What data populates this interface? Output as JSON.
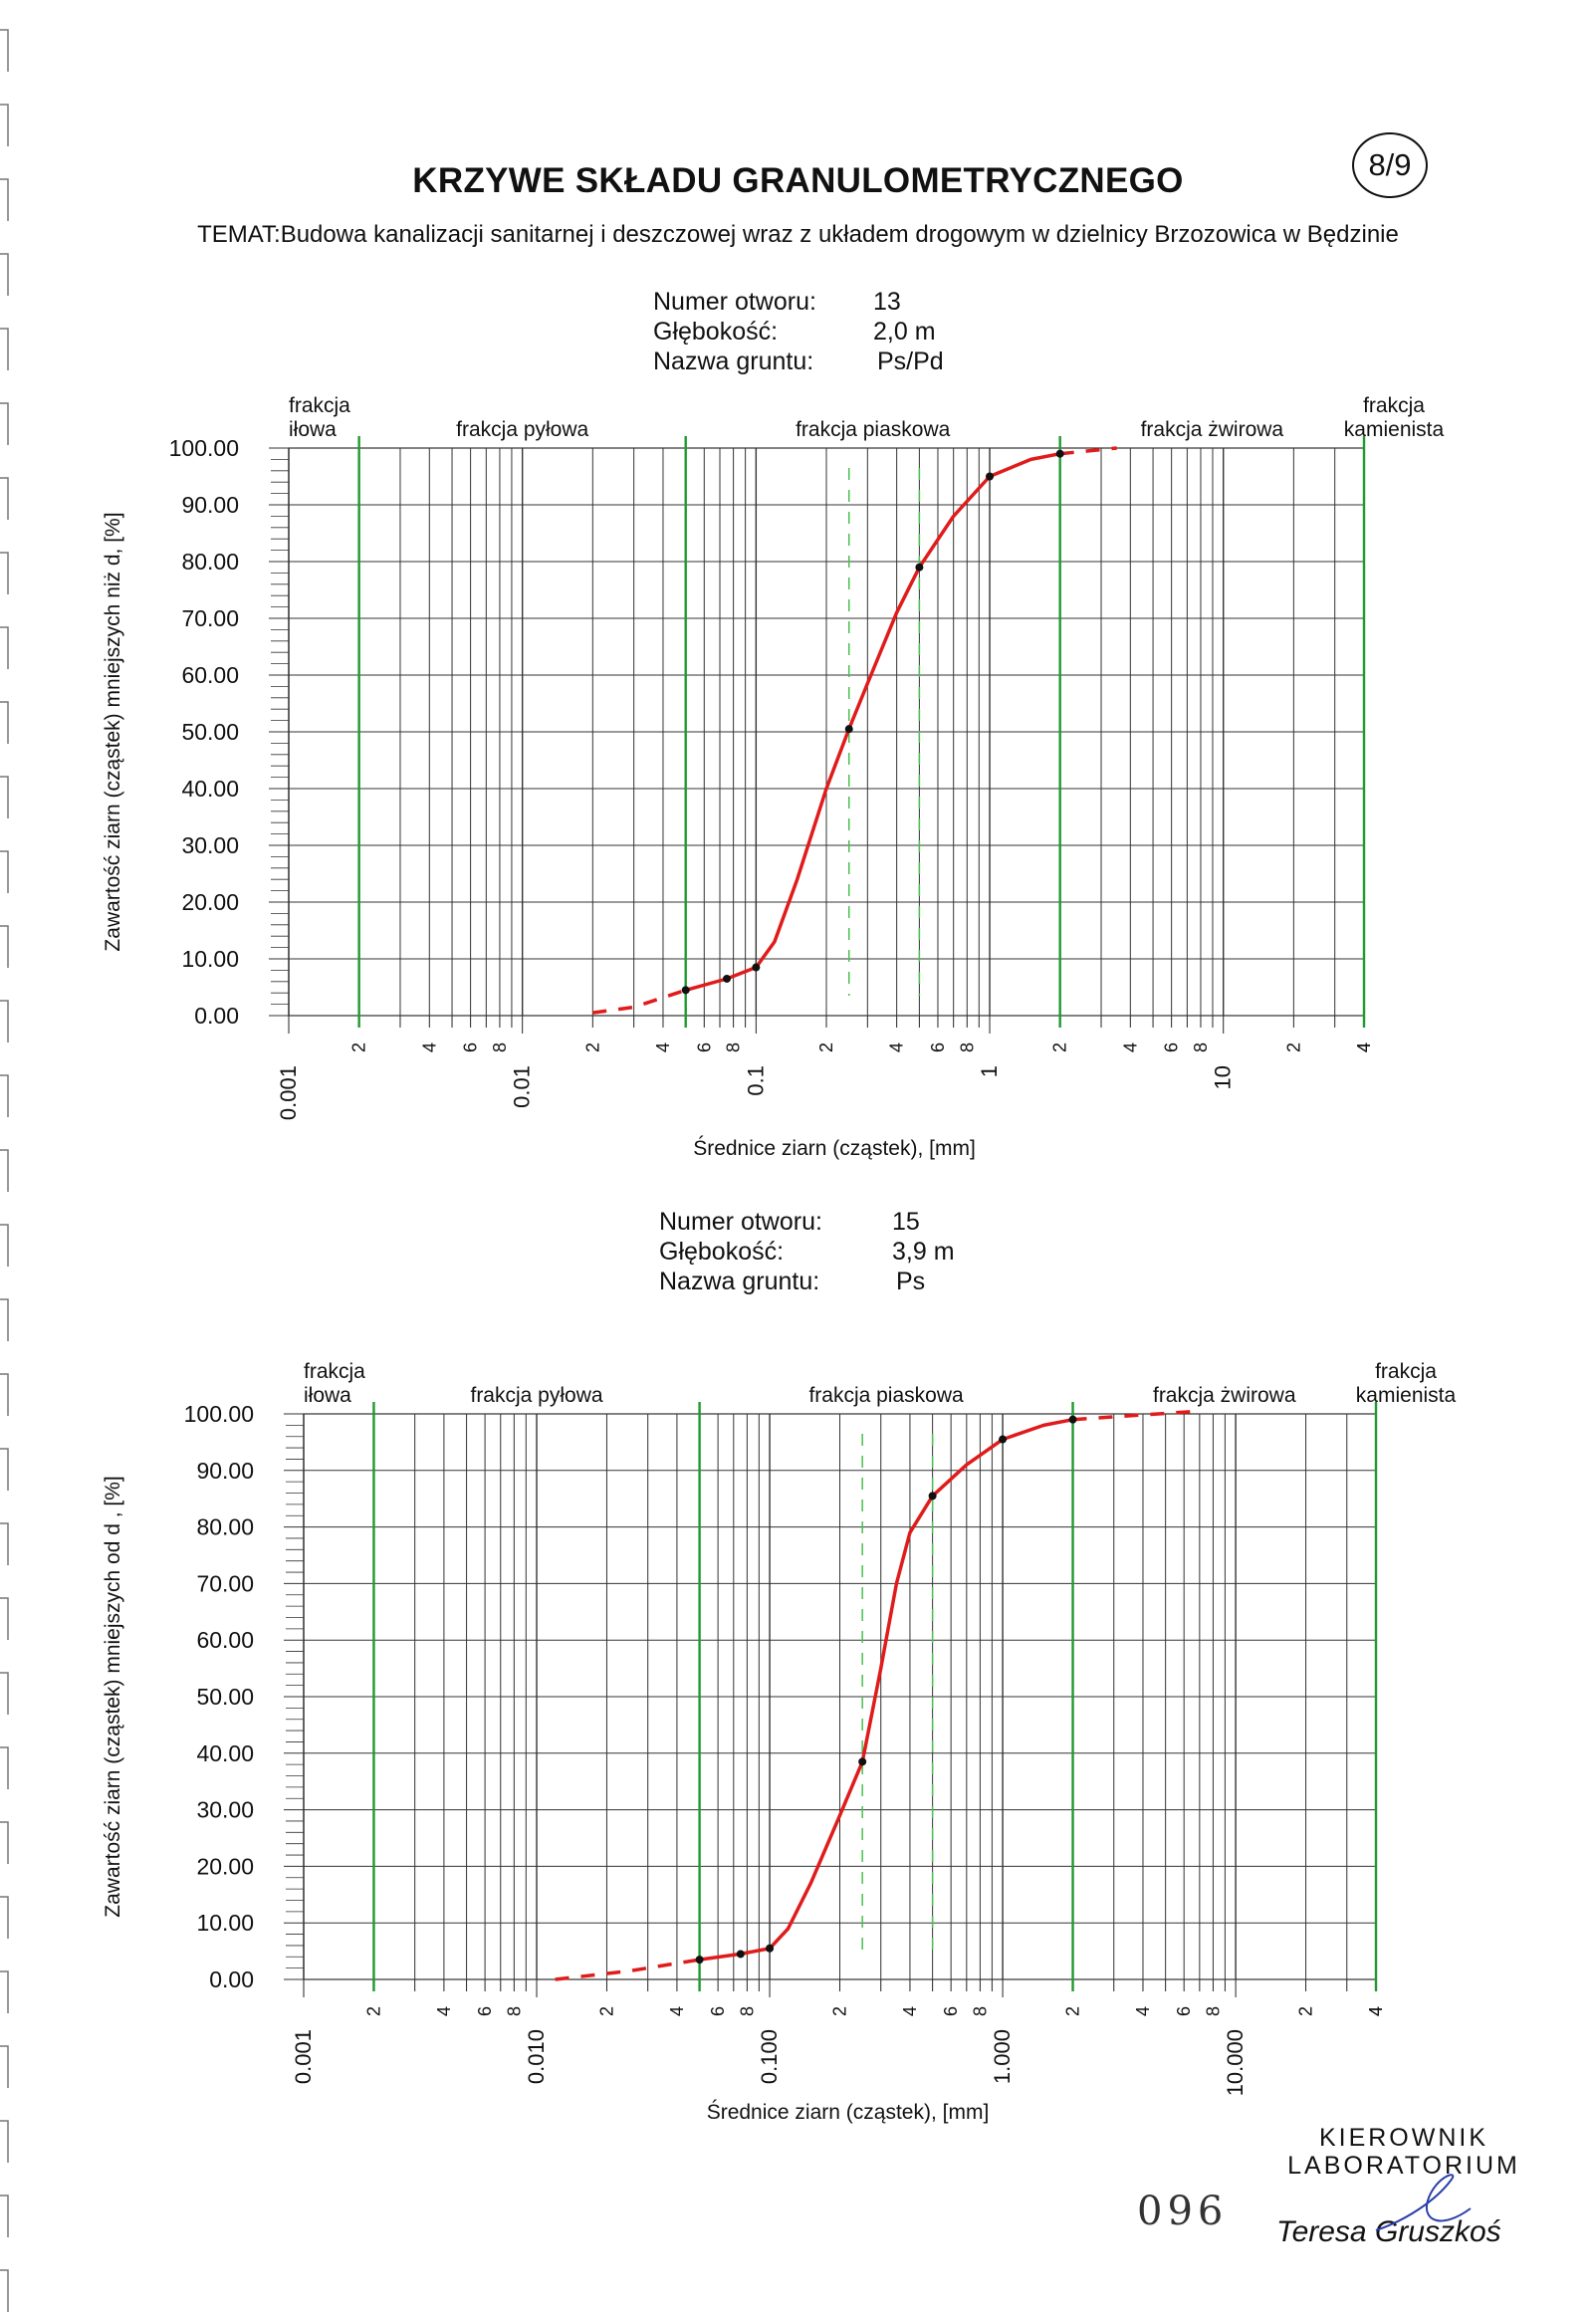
{
  "page": {
    "title": "KRZYWE SKŁADU GRANULOMETRYCZNEGO",
    "page_badge": "8/9",
    "topic": "TEMAT:Budowa kanalizacji sanitarnej i deszczowej wraz z układem drogowym w dzielnicy Brzozowica w Będzinie",
    "stamp_line1": "KIEROWNIK",
    "stamp_line2": "LABORATORIUM",
    "signatory": "Teresa Gruszkoś",
    "reference_number": "096"
  },
  "samples": [
    {
      "borehole_label": "Numer otworu:",
      "borehole": "13",
      "depth_label": "Głębokość:",
      "depth": "2,0 m",
      "soil_label": "Nazwa gruntu:",
      "soil": "Ps/Pd"
    },
    {
      "borehole_label": "Numer otworu:",
      "borehole": "15",
      "depth_label": "Głębokość:",
      "depth": "3,9 m",
      "soil_label": "Nazwa gruntu:",
      "soil": "Ps"
    }
  ],
  "chart_data": [
    {
      "type": "line",
      "x_scale": "log",
      "xlabel": "Średnice ziarn (cząstek), [mm]",
      "ylabel": "Zawartość ziarn (cząstek) mniejszych niż d, [%]",
      "xlim": [
        0.001,
        40
      ],
      "ylim": [
        0,
        100
      ],
      "y_ticks": [
        "0.00",
        "10.00",
        "20.00",
        "30.00",
        "40.00",
        "50.00",
        "60.00",
        "70.00",
        "80.00",
        "90.00",
        "100.00"
      ],
      "x_major_ticks": [
        "0.001",
        "0.01",
        "0.1",
        "1",
        "10"
      ],
      "x_minor_tick_digits": [
        "2",
        "4",
        "6",
        "8"
      ],
      "fractions": [
        {
          "label_line1": "frakcja",
          "label_line2": "iłowa",
          "from": 0.001,
          "to": 0.002
        },
        {
          "label_line1": "frakcja pyłowa",
          "label_line2": "",
          "from": 0.002,
          "to": 0.05
        },
        {
          "label_line1": "frakcja piaskowa",
          "label_line2": "",
          "from": 0.05,
          "to": 2
        },
        {
          "label_line1": "frakcja żwirowa",
          "label_line2": "",
          "from": 2,
          "to": 40
        },
        {
          "label_line1": "frakcja",
          "label_line2": "kamienista",
          "from": 40,
          "to": 40
        }
      ],
      "fraction_boundaries": [
        0.002,
        0.05,
        2,
        40
      ],
      "dashed_guides": [
        0.25,
        0.5
      ],
      "series": [
        {
          "color": "#e01b1b",
          "measured_points": [
            [
              0.05,
              4.5
            ],
            [
              0.075,
              6.5
            ],
            [
              0.1,
              8.5
            ],
            [
              0.25,
              50.5
            ],
            [
              0.5,
              79
            ],
            [
              1,
              95
            ],
            [
              2,
              99
            ]
          ],
          "curve": [
            [
              0.05,
              4.5
            ],
            [
              0.075,
              6.5
            ],
            [
              0.1,
              8.5
            ],
            [
              0.12,
              13
            ],
            [
              0.15,
              24
            ],
            [
              0.2,
              40
            ],
            [
              0.25,
              50.5
            ],
            [
              0.3,
              58.5
            ],
            [
              0.4,
              71
            ],
            [
              0.5,
              79
            ],
            [
              0.7,
              88
            ],
            [
              1,
              95
            ],
            [
              1.5,
              98
            ],
            [
              2,
              99
            ]
          ],
          "extrapolated_low": [
            [
              0.02,
              0.5
            ],
            [
              0.03,
              1.5
            ],
            [
              0.05,
              4.5
            ]
          ],
          "extrapolated_high": [
            [
              2,
              99
            ],
            [
              3.5,
              100
            ]
          ]
        }
      ]
    },
    {
      "type": "line",
      "x_scale": "log",
      "xlabel": "Średnice ziarn (cząstek), [mm]",
      "ylabel": "Zawartość ziarn (cząstek) mniejszych od d , [%]",
      "xlim": [
        0.001,
        40
      ],
      "ylim": [
        0,
        100
      ],
      "y_ticks": [
        "0.00",
        "10.00",
        "20.00",
        "30.00",
        "40.00",
        "50.00",
        "60.00",
        "70.00",
        "80.00",
        "90.00",
        "100.00"
      ],
      "x_major_ticks": [
        "0.001",
        "0.010",
        "0.100",
        "1.000",
        "10.000"
      ],
      "x_minor_tick_digits": [
        "2",
        "4",
        "6",
        "8"
      ],
      "fractions": [
        {
          "label_line1": "frakcja",
          "label_line2": "iłowa",
          "from": 0.001,
          "to": 0.002
        },
        {
          "label_line1": "frakcja pyłowa",
          "label_line2": "",
          "from": 0.002,
          "to": 0.05
        },
        {
          "label_line1": "frakcja piaskowa",
          "label_line2": "",
          "from": 0.05,
          "to": 2
        },
        {
          "label_line1": "frakcja żwirowa",
          "label_line2": "",
          "from": 2,
          "to": 40
        },
        {
          "label_line1": "frakcja",
          "label_line2": "kamienista",
          "from": 40,
          "to": 40
        }
      ],
      "fraction_boundaries": [
        0.002,
        0.05,
        2,
        40
      ],
      "dashed_guides": [
        0.25,
        0.5
      ],
      "series": [
        {
          "color": "#e01b1b",
          "measured_points": [
            [
              0.05,
              3.5
            ],
            [
              0.075,
              4.5
            ],
            [
              0.1,
              5.5
            ],
            [
              0.25,
              38.5
            ],
            [
              0.5,
              85.5
            ],
            [
              1,
              95.5
            ],
            [
              2,
              99
            ]
          ],
          "curve": [
            [
              0.05,
              3.5
            ],
            [
              0.075,
              4.5
            ],
            [
              0.1,
              5.5
            ],
            [
              0.12,
              9
            ],
            [
              0.15,
              17
            ],
            [
              0.2,
              29
            ],
            [
              0.25,
              38.5
            ],
            [
              0.3,
              55
            ],
            [
              0.35,
              70
            ],
            [
              0.4,
              79
            ],
            [
              0.5,
              85.5
            ],
            [
              0.7,
              91
            ],
            [
              1,
              95.5
            ],
            [
              1.5,
              98
            ],
            [
              2,
              99
            ]
          ],
          "extrapolated_low": [
            [
              0.012,
              0
            ],
            [
              0.025,
              1.5
            ],
            [
              0.05,
              3.5
            ]
          ],
          "extrapolated_high": [
            [
              2,
              99
            ],
            [
              7,
              100.5
            ]
          ]
        }
      ]
    }
  ]
}
